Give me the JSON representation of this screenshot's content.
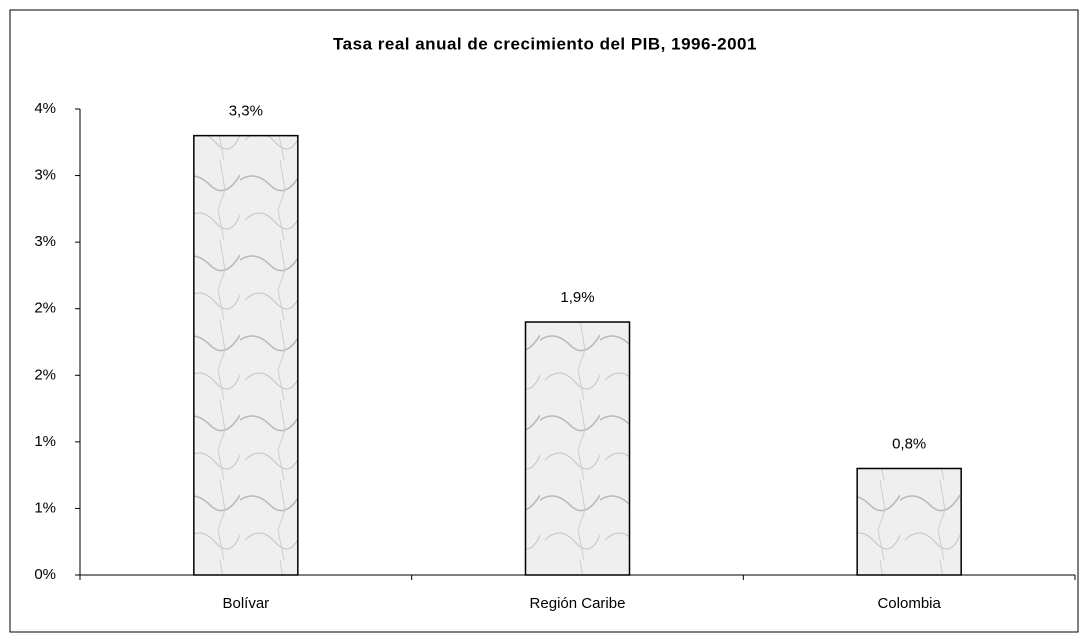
{
  "chart_data": {
    "type": "bar",
    "title": "Tasa real anual de crecimiento del PIB, 1996-2001",
    "categories": [
      "Bolívar",
      "Región Caribe",
      "Colombia"
    ],
    "values": [
      3.3,
      1.9,
      0.8
    ],
    "value_labels": [
      "3,3%",
      "1,9%",
      "0,8%"
    ],
    "ylim": [
      0,
      3.5
    ],
    "yticks": [
      {
        "value": 0,
        "label": "0%"
      },
      {
        "value": 0.5,
        "label": "1%"
      },
      {
        "value": 1,
        "label": "1%"
      },
      {
        "value": 1.5,
        "label": "2%"
      },
      {
        "value": 2,
        "label": "2%"
      },
      {
        "value": 2.5,
        "label": "3%"
      },
      {
        "value": 3,
        "label": "3%"
      },
      {
        "value": 3.5,
        "label": "4%"
      }
    ],
    "grid": false
  }
}
